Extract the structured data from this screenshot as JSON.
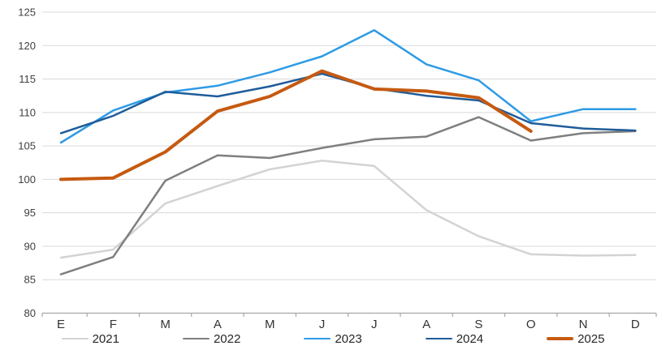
{
  "chart_data": {
    "type": "line",
    "title": "",
    "xlabel": "",
    "ylabel": "",
    "categories": [
      "E",
      "F",
      "M",
      "A",
      "M",
      "J",
      "J",
      "A",
      "S",
      "O",
      "N",
      "D"
    ],
    "series": [
      {
        "name": "2021",
        "color": "#d3d3d3",
        "thickness": 2.5,
        "values": [
          88.3,
          89.5,
          96.4,
          99.0,
          101.5,
          102.8,
          102.0,
          95.4,
          91.5,
          88.8,
          88.6,
          88.7
        ]
      },
      {
        "name": "2022",
        "color": "#7f7f7f",
        "thickness": 2.5,
        "values": [
          85.8,
          88.4,
          99.8,
          103.6,
          103.2,
          104.7,
          106.0,
          106.4,
          109.3,
          105.8,
          106.9,
          107.2
        ]
      },
      {
        "name": "2023",
        "color": "#2e9be5",
        "thickness": 2.5,
        "values": [
          105.5,
          110.3,
          113.0,
          114.0,
          116.0,
          118.4,
          122.3,
          117.2,
          114.8,
          108.7,
          110.5,
          110.5
        ]
      },
      {
        "name": "2024",
        "color": "#1f5c99",
        "thickness": 2.5,
        "values": [
          106.9,
          109.5,
          113.1,
          112.4,
          113.9,
          115.8,
          113.6,
          112.5,
          111.8,
          108.4,
          107.6,
          107.3
        ]
      },
      {
        "name": "2025",
        "color": "#c55a11",
        "thickness": 4,
        "values": [
          100.0,
          100.2,
          104.1,
          110.2,
          112.4,
          116.2,
          113.5,
          113.2,
          112.2,
          107.2,
          null,
          null
        ]
      }
    ],
    "ylim": [
      80,
      125
    ],
    "ytick_step": 5,
    "ytick_labels": [
      "80",
      "85",
      "90",
      "95",
      "100",
      "105",
      "110",
      "115",
      "120",
      "125"
    ],
    "grid": true,
    "gridline_color": "#d9d9d9",
    "axis_line_color": "#a6a6a6",
    "legend_position": "bottom"
  }
}
